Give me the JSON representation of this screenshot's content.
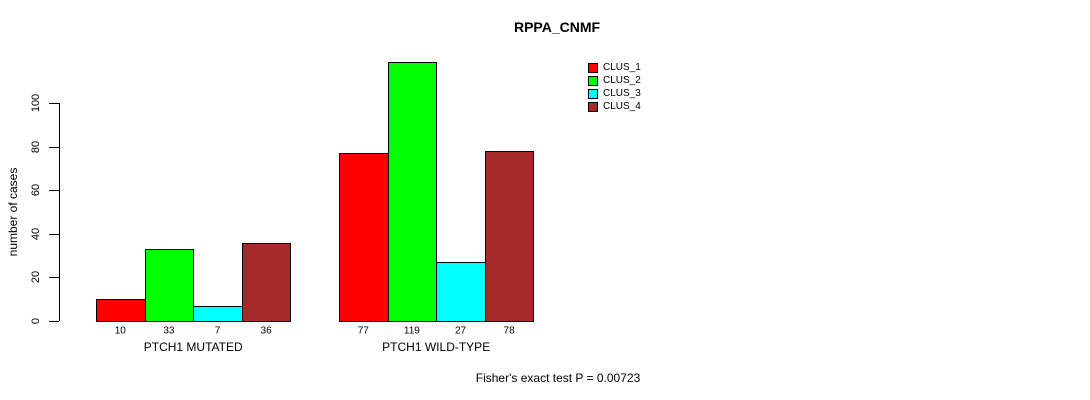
{
  "chart_data": {
    "type": "bar",
    "title": "RPPA_CNMF",
    "ylabel": "number of cases",
    "xlabel": "",
    "categories": [
      "PTCH1 MUTATED",
      "PTCH1 WILD-TYPE"
    ],
    "series": [
      {
        "name": "CLUS_1",
        "color": "#FF0000",
        "values": [
          10,
          77
        ]
      },
      {
        "name": "CLUS_2",
        "color": "#00FF00",
        "values": [
          33,
          119
        ]
      },
      {
        "name": "CLUS_3",
        "color": "#00FFFF",
        "values": [
          7,
          27
        ]
      },
      {
        "name": "CLUS_4",
        "color": "#A52A2A",
        "values": [
          36,
          78
        ]
      }
    ],
    "ylim": [
      0,
      100
    ],
    "yticks": [
      0,
      20,
      40,
      60,
      80,
      100
    ],
    "grid": false,
    "bar_value_labels": true,
    "legend_position": "top-right",
    "annotation": "Fisher's exact test P = 0.00723"
  }
}
